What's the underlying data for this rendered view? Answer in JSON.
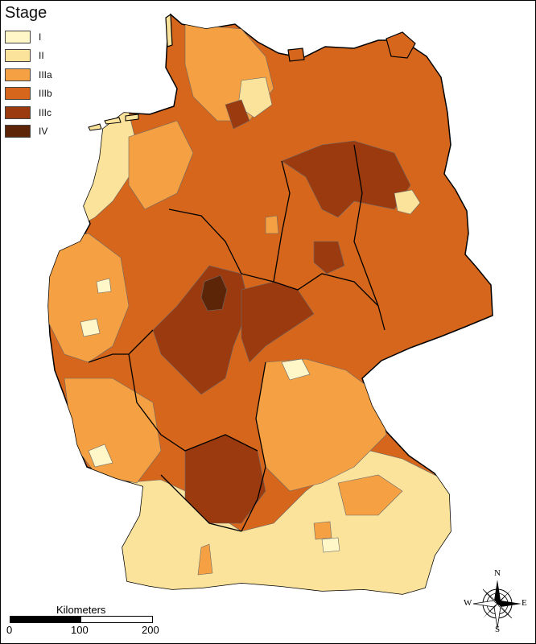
{
  "legend": {
    "title": "Stage",
    "items": [
      {
        "label": "I",
        "color": "#fff7c8"
      },
      {
        "label": "II",
        "color": "#fbe39c"
      },
      {
        "label": "IIIa",
        "color": "#f5a042"
      },
      {
        "label": "IIIb",
        "color": "#d5661c"
      },
      {
        "label": "IIIc",
        "color": "#9a3a0e"
      },
      {
        "label": "IV",
        "color": "#5c2508"
      }
    ]
  },
  "scale_bar": {
    "title": "Kilometers",
    "ticks": [
      "0",
      "100",
      "200"
    ]
  },
  "compass": {
    "n": "N",
    "s": "S",
    "e": "E",
    "w": "W"
  }
}
